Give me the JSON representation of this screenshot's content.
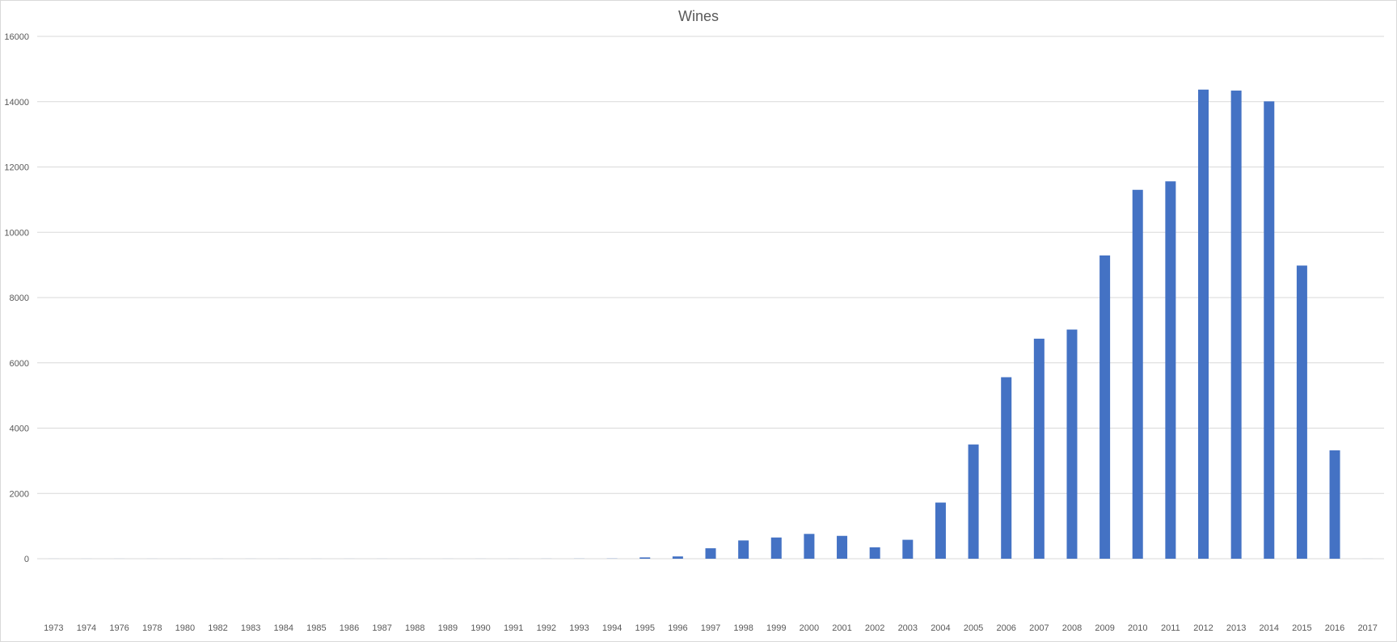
{
  "chart_data": {
    "type": "bar",
    "title": "Wines",
    "xlabel": "",
    "ylabel": "",
    "ylim": [
      0,
      16000
    ],
    "yticks": [
      "0",
      "2000",
      "4000",
      "6000",
      "8000",
      "10000",
      "12000",
      "14000",
      "16000"
    ],
    "grid": true,
    "legend": "none",
    "categories": [
      "1973",
      "1974",
      "1976",
      "1978",
      "1980",
      "1982",
      "1983",
      "1984",
      "1985",
      "1986",
      "1987",
      "1988",
      "1989",
      "1990",
      "1991",
      "1992",
      "1993",
      "1994",
      "1995",
      "1996",
      "1997",
      "1998",
      "1999",
      "2000",
      "2001",
      "2002",
      "2003",
      "2004",
      "2005",
      "2006",
      "2007",
      "2008",
      "2009",
      "2010",
      "2011",
      "2012",
      "2013",
      "2014",
      "2015",
      "2016",
      "2017"
    ],
    "values": [
      1,
      1,
      1,
      1,
      1,
      1,
      1,
      1,
      1,
      1,
      1,
      1,
      1,
      1,
      1,
      2,
      3,
      5,
      40,
      70,
      320,
      560,
      650,
      760,
      700,
      350,
      580,
      1720,
      3500,
      5560,
      6740,
      7020,
      9290,
      11300,
      11560,
      14370,
      14340,
      14010,
      8980,
      3320,
      1
    ],
    "colors": {
      "bar": "#4472c4",
      "grid": "#d9d9d9",
      "text": "#595959"
    }
  }
}
